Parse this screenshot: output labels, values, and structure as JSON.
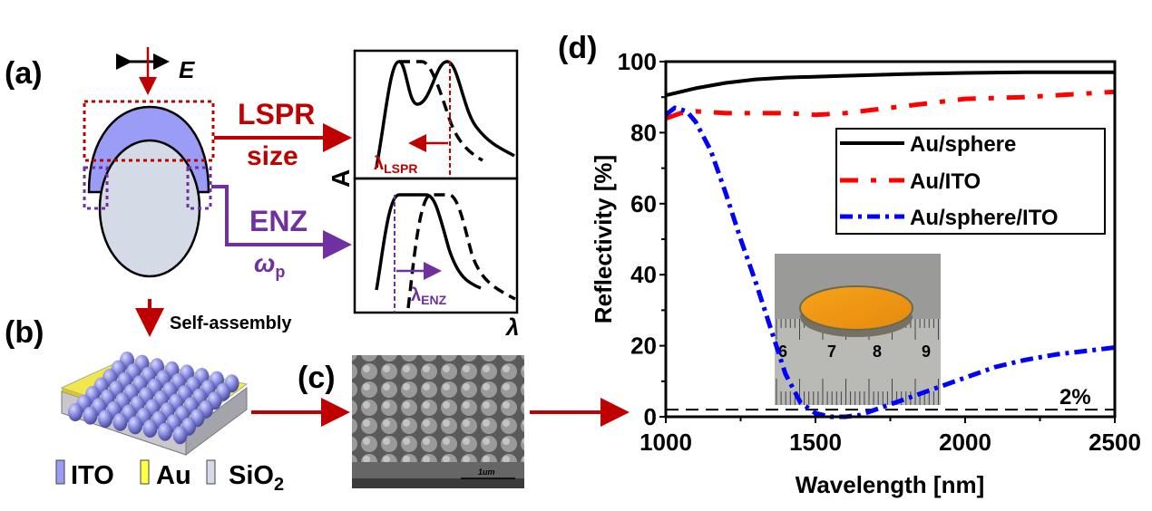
{
  "panels": {
    "a": {
      "label": "(a)",
      "field_label": "E",
      "lspr_label": "LSPR",
      "size_label": "size",
      "enz_label": "ENZ",
      "omega_label": "ω",
      "omega_sub": "p",
      "lambda_lspr": "λ",
      "lambda_lspr_sub": "LSPR",
      "lambda_enz": "λ",
      "lambda_enz_sub": "ENZ",
      "absorbance_axis": "A",
      "wavelength_axis": "λ"
    },
    "b": {
      "label": "(b)",
      "process_label": "Self-assembly",
      "legend": [
        {
          "name": "ITO",
          "color": "#9b9cf5"
        },
        {
          "name": "Au",
          "color": "#ffff44"
        },
        {
          "name": "SiO",
          "sub": "2",
          "color": "#d5dbe6"
        }
      ]
    },
    "c": {
      "label": "(c)",
      "scale_bar": "1um"
    },
    "d": {
      "label": "(d)",
      "inset_ruler_numbers": [
        "6",
        "7",
        "8",
        "9"
      ]
    }
  },
  "colors": {
    "lspr": "#c00000",
    "enz": "#7030a0",
    "ito": "#9b9cf5",
    "sio2": "#d5dbe6"
  },
  "chart_data": {
    "type": "line",
    "xlabel": "Wavelength [nm]",
    "ylabel": "Reflectivity [%]",
    "xlim": [
      1000,
      2500
    ],
    "ylim": [
      0,
      100
    ],
    "xticks": [
      "1000",
      "1500",
      "2000",
      "2500"
    ],
    "yticks": [
      "0",
      "20",
      "40",
      "60",
      "80",
      "100"
    ],
    "grid": false,
    "legend_position": "center-right",
    "annotation": "2%",
    "reference_line": 2,
    "series": [
      {
        "name": "Au/sphere",
        "color": "#000000",
        "style": "solid",
        "x": [
          1000,
          1050,
          1100,
          1200,
          1300,
          1400,
          1600,
          1800,
          2000,
          2200,
          2500
        ],
        "y": [
          90.5,
          91.5,
          92.5,
          94,
          95,
          95.5,
          96,
          96.5,
          96.8,
          97,
          97
        ]
      },
      {
        "name": "Au/ITO",
        "color": "#ff0000",
        "style": "dash",
        "x": [
          1000,
          1050,
          1100,
          1200,
          1300,
          1400,
          1500,
          1600,
          1700,
          1800,
          1900,
          2000,
          2200,
          2400,
          2500
        ],
        "y": [
          84,
          85.5,
          86,
          85.5,
          85.5,
          85.5,
          85,
          85.5,
          86.5,
          87.5,
          88.5,
          89.5,
          90,
          91,
          91.5
        ]
      },
      {
        "name": "Au/sphere/ITO",
        "color": "#0000ff",
        "style": "dashdot",
        "x": [
          1000,
          1030,
          1070,
          1100,
          1150,
          1200,
          1250,
          1300,
          1350,
          1400,
          1450,
          1500,
          1550,
          1600,
          1650,
          1700,
          1800,
          1900,
          2000,
          2100,
          2200,
          2300,
          2400,
          2500
        ],
        "y": [
          85,
          87,
          86,
          83,
          75,
          63,
          50,
          38,
          25,
          12,
          4,
          1,
          0,
          0,
          0.5,
          2,
          5,
          8,
          11,
          14,
          16,
          17.5,
          18.5,
          19.5
        ]
      }
    ]
  }
}
